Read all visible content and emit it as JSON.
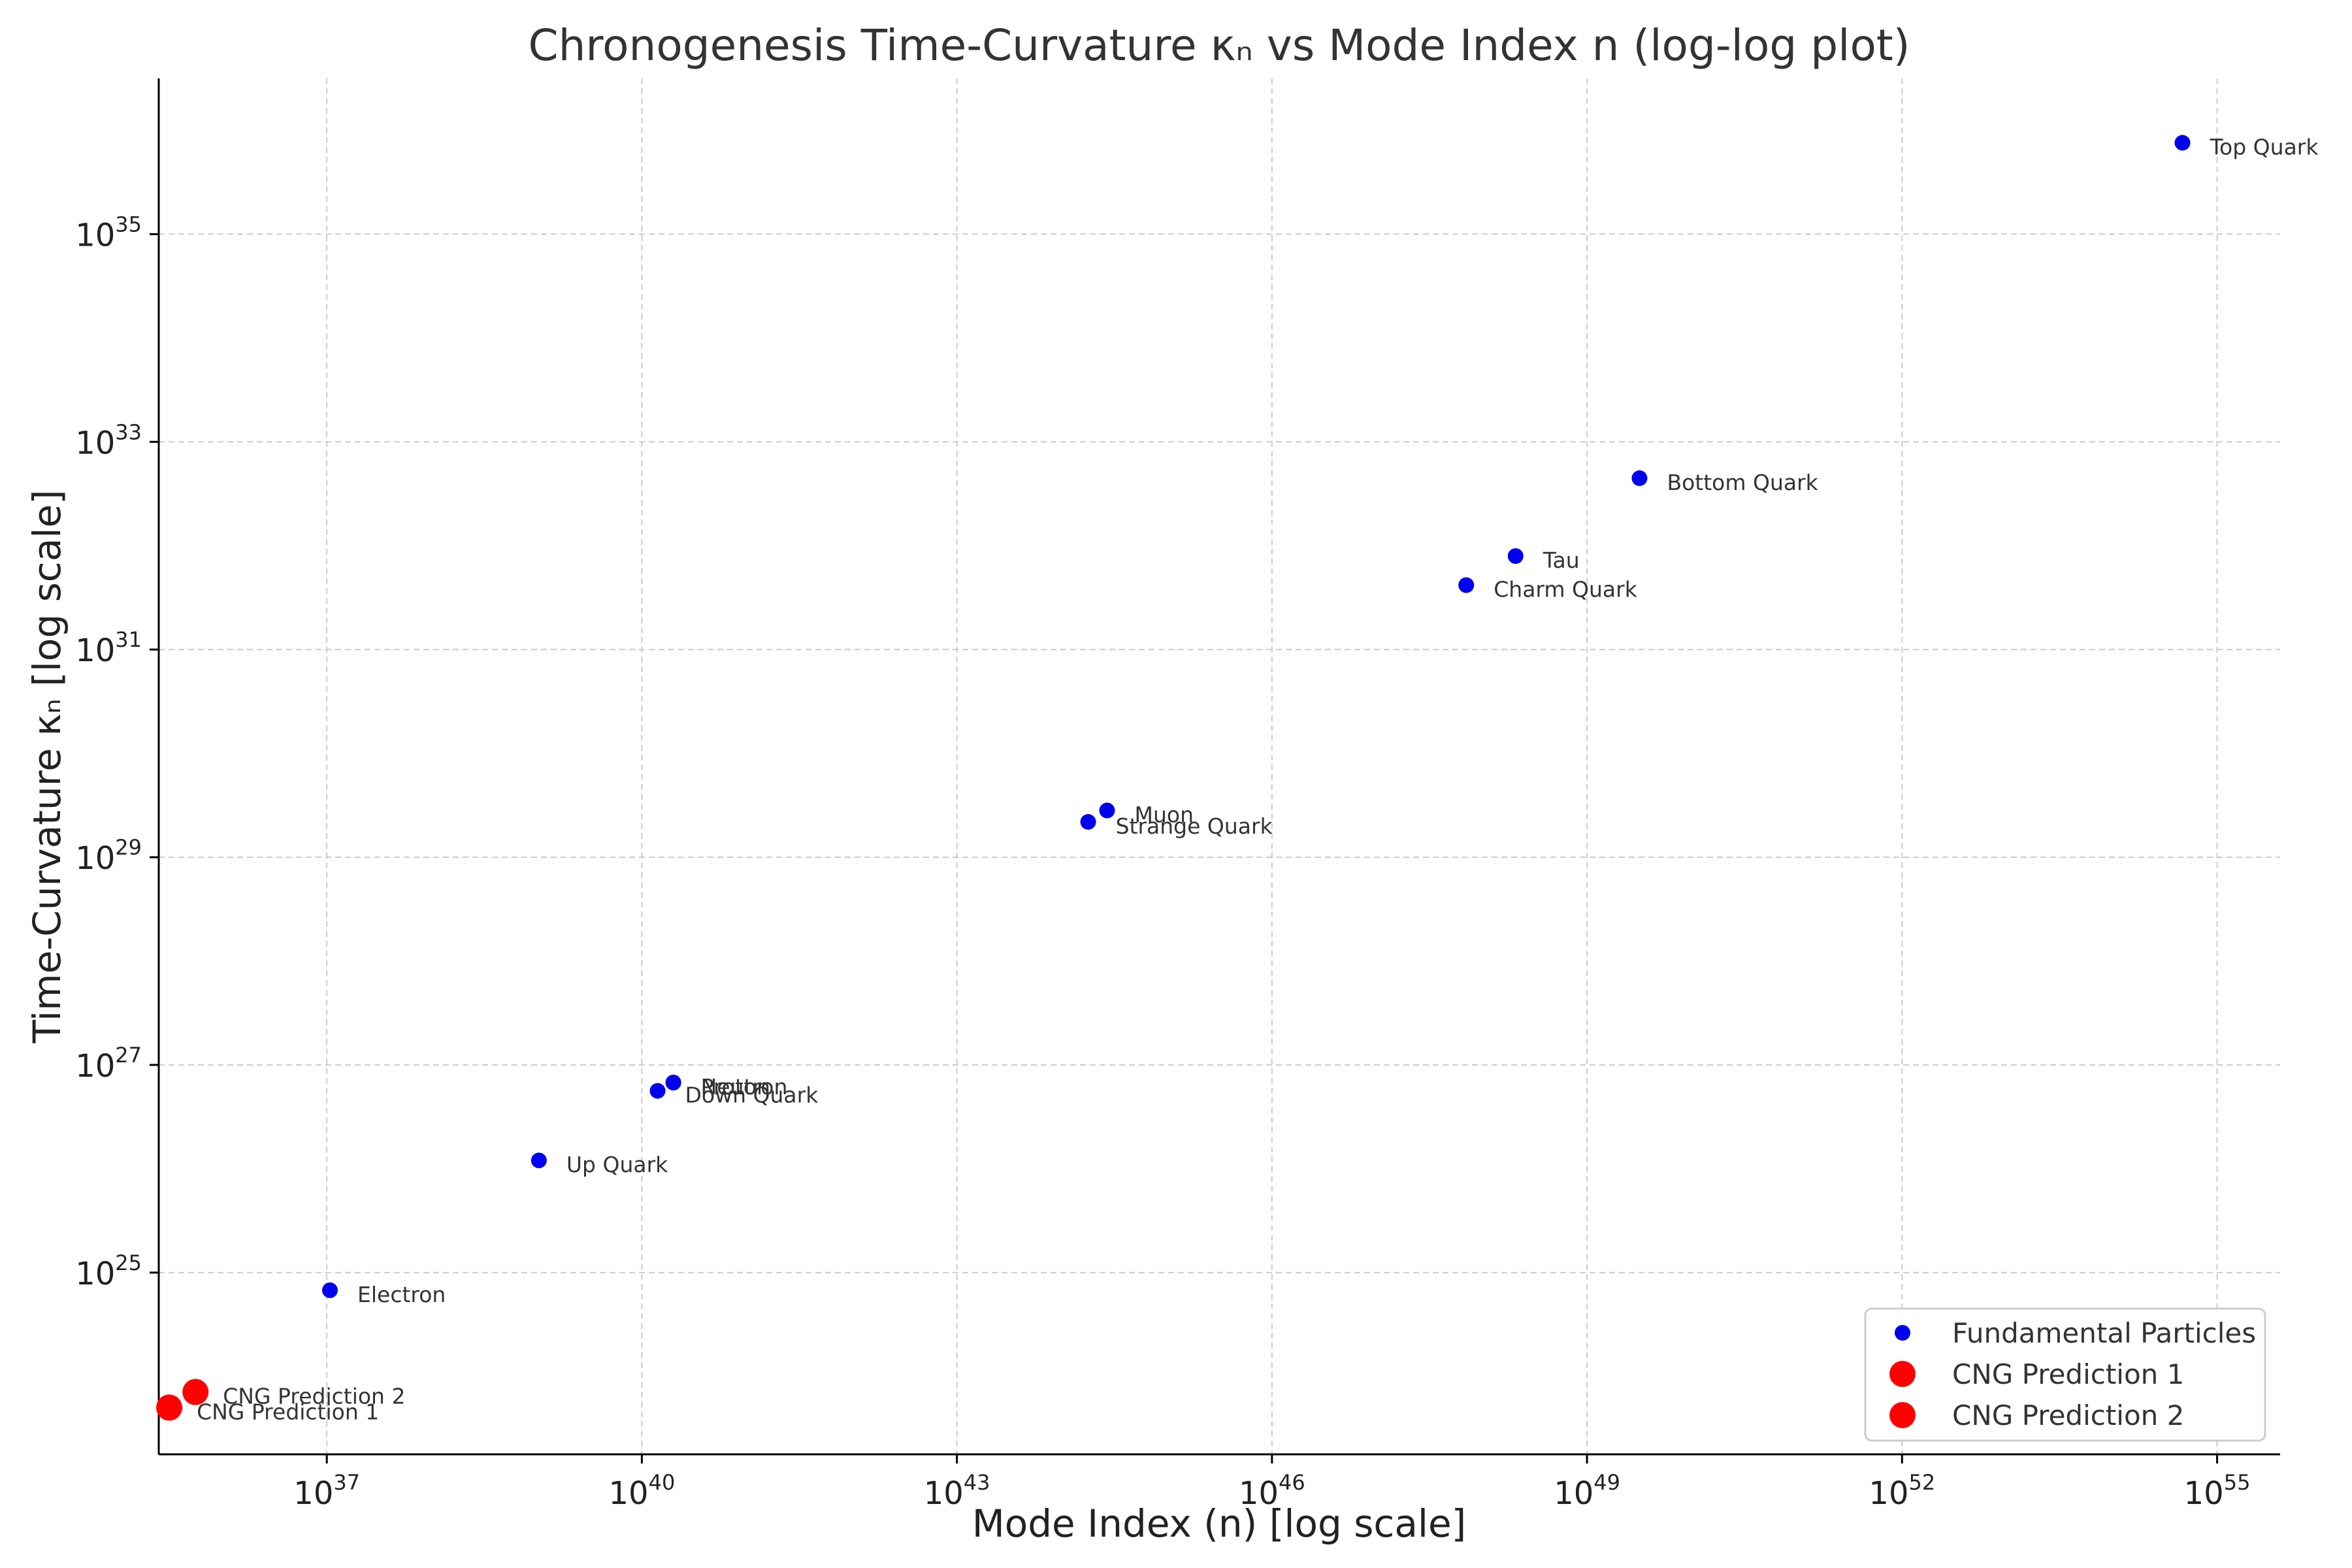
{
  "chart_data": {
    "type": "scatter",
    "title": "Chronogenesis Time-Curvature κₙ vs Mode Index n (log-log plot)",
    "xlabel": "Mode Index (n) [log scale]",
    "ylabel": "Time-Curvature κₙ [log scale]",
    "xscale": "log",
    "yscale": "log",
    "xlim_log10": [
      35.4,
      55.6
    ],
    "ylim_log10": [
      23.25,
      36.5
    ],
    "xticks": [
      {
        "base": "10",
        "exp": "37",
        "log10": 37
      },
      {
        "base": "10",
        "exp": "40",
        "log10": 40
      },
      {
        "base": "10",
        "exp": "43",
        "log10": 43
      },
      {
        "base": "10",
        "exp": "46",
        "log10": 46
      },
      {
        "base": "10",
        "exp": "49",
        "log10": 49
      },
      {
        "base": "10",
        "exp": "52",
        "log10": 52
      },
      {
        "base": "10",
        "exp": "55",
        "log10": 55
      }
    ],
    "yticks": [
      {
        "base": "10",
        "exp": "25",
        "log10": 25
      },
      {
        "base": "10",
        "exp": "27",
        "log10": 27
      },
      {
        "base": "10",
        "exp": "29",
        "log10": 29
      },
      {
        "base": "10",
        "exp": "31",
        "log10": 31
      },
      {
        "base": "10",
        "exp": "33",
        "log10": 33
      },
      {
        "base": "10",
        "exp": "35",
        "log10": 35
      }
    ],
    "grid": true,
    "legend_position": "bottom-right",
    "series": [
      {
        "name": "Fundamental Particles",
        "color": "#0000ee",
        "marker": "small-circle",
        "points": [
          {
            "label": "Electron",
            "log10_n": 37.03,
            "log10_kappa": 24.83
          },
          {
            "label": "Up Quark",
            "log10_n": 39.02,
            "log10_kappa": 26.08
          },
          {
            "label": "Down Quark",
            "log10_n": 40.15,
            "log10_kappa": 26.75
          },
          {
            "label": "Proton",
            "log10_n": 40.3,
            "log10_kappa": 26.83
          },
          {
            "label": "Neutron",
            "log10_n": 40.3,
            "log10_kappa": 26.83
          },
          {
            "label": "Strange Quark",
            "log10_n": 44.25,
            "log10_kappa": 29.34
          },
          {
            "label": "Muon",
            "log10_n": 44.43,
            "log10_kappa": 29.45
          },
          {
            "label": "Charm Quark",
            "log10_n": 47.85,
            "log10_kappa": 31.62
          },
          {
            "label": "Tau",
            "log10_n": 48.32,
            "log10_kappa": 31.9
          },
          {
            "label": "Bottom Quark",
            "log10_n": 49.5,
            "log10_kappa": 32.65
          },
          {
            "label": "Top Quark",
            "log10_n": 54.67,
            "log10_kappa": 35.88
          }
        ]
      },
      {
        "name": "CNG Prediction 1",
        "color": "#ff0000",
        "marker": "large-circle",
        "points": [
          {
            "label": "CNG Prediction 1",
            "log10_n": 35.5,
            "log10_kappa": 23.7
          }
        ]
      },
      {
        "name": "CNG Prediction 2",
        "color": "#ff0000",
        "marker": "large-circle",
        "points": [
          {
            "label": "CNG Prediction 2",
            "log10_n": 35.75,
            "log10_kappa": 23.85
          }
        ]
      }
    ]
  }
}
